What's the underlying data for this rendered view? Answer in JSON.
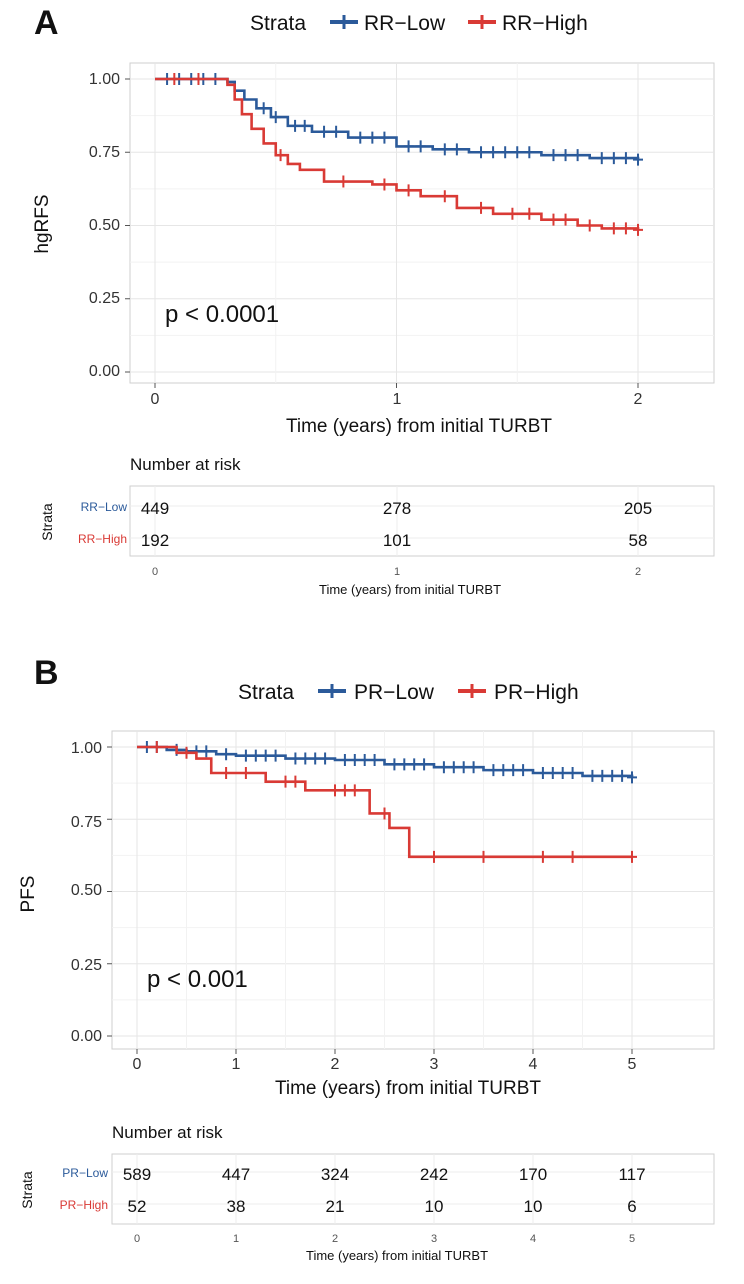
{
  "colors": {
    "low": "#2b5a9a",
    "high": "#d93a35",
    "grid": "#e6e6e6",
    "panel_border": "#cfcfcf"
  },
  "chart_data": [
    {
      "type": "line",
      "panel_label": "A",
      "legend": {
        "title": "Strata",
        "entries": [
          "RR−Low",
          "RR−High"
        ]
      },
      "xlabel": "Time (years) from initial TURBT",
      "ylabel": "hgRFS",
      "xlim": [
        0,
        2
      ],
      "ylim": [
        0,
        1
      ],
      "x_ticks": [
        "0",
        "1",
        "2"
      ],
      "y_ticks": [
        "0.00",
        "0.25",
        "0.50",
        "0.75",
        "1.00"
      ],
      "annotation": "p < 0.0001",
      "grid": true,
      "legend_position": "top",
      "series": [
        {
          "name": "RR−Low",
          "step_x": [
            0,
            0.3,
            0.33,
            0.37,
            0.42,
            0.48,
            0.55,
            0.65,
            0.8,
            1.0,
            1.15,
            1.3,
            1.6,
            1.8,
            2.0
          ],
          "step_y": [
            1.0,
            0.99,
            0.96,
            0.93,
            0.9,
            0.87,
            0.84,
            0.82,
            0.8,
            0.77,
            0.76,
            0.75,
            0.74,
            0.73,
            0.725
          ],
          "censor_x": [
            0.05,
            0.1,
            0.15,
            0.2,
            0.25,
            0.45,
            0.5,
            0.58,
            0.62,
            0.7,
            0.75,
            0.85,
            0.9,
            0.95,
            1.05,
            1.1,
            1.2,
            1.25,
            1.35,
            1.4,
            1.45,
            1.5,
            1.55,
            1.65,
            1.7,
            1.75,
            1.85,
            1.9,
            1.95,
            2.0
          ]
        },
        {
          "name": "RR−High",
          "step_x": [
            0,
            0.3,
            0.33,
            0.36,
            0.4,
            0.45,
            0.5,
            0.55,
            0.6,
            0.7,
            0.9,
            1.0,
            1.1,
            1.25,
            1.4,
            1.6,
            1.75,
            1.85,
            2.0
          ],
          "step_y": [
            1.0,
            0.98,
            0.93,
            0.88,
            0.83,
            0.78,
            0.74,
            0.71,
            0.69,
            0.65,
            0.64,
            0.62,
            0.6,
            0.56,
            0.54,
            0.52,
            0.5,
            0.49,
            0.485
          ],
          "censor_x": [
            0.08,
            0.18,
            0.52,
            0.78,
            0.95,
            1.05,
            1.2,
            1.35,
            1.48,
            1.55,
            1.65,
            1.7,
            1.8,
            1.9,
            1.95,
            2.0
          ]
        }
      ],
      "risk_table": {
        "title": "Number at risk",
        "strata_title": "Strata",
        "xlabel": "Time (years) from initial TURBT",
        "times": [
          "0",
          "1",
          "2"
        ],
        "rows": [
          {
            "label": "RR−Low",
            "values": [
              "449",
              "278",
              "205"
            ]
          },
          {
            "label": "RR−High",
            "values": [
              "192",
              "101",
              "58"
            ]
          }
        ]
      }
    },
    {
      "type": "line",
      "panel_label": "B",
      "legend": {
        "title": "Strata",
        "entries": [
          "PR−Low",
          "PR−High"
        ]
      },
      "xlabel": "Time (years) from initial TURBT",
      "ylabel": "PFS",
      "xlim": [
        0,
        5
      ],
      "ylim": [
        0,
        1
      ],
      "x_ticks": [
        "0",
        "1",
        "2",
        "3",
        "4",
        "5"
      ],
      "y_ticks": [
        "0.00",
        "0.25",
        "0.50",
        "0.75",
        "1.00"
      ],
      "annotation": "p < 0.001",
      "grid": true,
      "legend_position": "top",
      "series": [
        {
          "name": "PR−Low",
          "step_x": [
            0,
            0.3,
            0.5,
            0.8,
            1.0,
            1.5,
            2.0,
            2.5,
            3.0,
            3.5,
            4.0,
            4.5,
            5.0
          ],
          "step_y": [
            1.0,
            0.99,
            0.985,
            0.975,
            0.97,
            0.96,
            0.955,
            0.94,
            0.93,
            0.92,
            0.91,
            0.9,
            0.895
          ],
          "censor_x": [
            0.1,
            0.2,
            0.4,
            0.6,
            0.7,
            0.9,
            1.1,
            1.2,
            1.3,
            1.4,
            1.6,
            1.7,
            1.8,
            1.9,
            2.1,
            2.2,
            2.3,
            2.4,
            2.6,
            2.7,
            2.8,
            2.9,
            3.1,
            3.2,
            3.3,
            3.4,
            3.6,
            3.7,
            3.8,
            3.9,
            4.1,
            4.2,
            4.3,
            4.4,
            4.6,
            4.7,
            4.8,
            4.9,
            5.0
          ]
        },
        {
          "name": "PR−High",
          "step_x": [
            0,
            0.4,
            0.6,
            0.75,
            1.3,
            1.7,
            2.35,
            2.55,
            2.75,
            5.0
          ],
          "step_y": [
            1.0,
            0.98,
            0.96,
            0.91,
            0.88,
            0.85,
            0.77,
            0.72,
            0.62,
            0.62
          ],
          "censor_x": [
            0.2,
            0.5,
            0.9,
            1.1,
            1.5,
            1.6,
            2.0,
            2.1,
            2.2,
            2.5,
            3.0,
            3.5,
            4.1,
            4.4,
            5.0
          ]
        }
      ],
      "risk_table": {
        "title": "Number at risk",
        "strata_title": "Strata",
        "xlabel": "Time (years) from initial TURBT",
        "times": [
          "0",
          "1",
          "2",
          "3",
          "4",
          "5"
        ],
        "rows": [
          {
            "label": "PR−Low",
            "values": [
              "589",
              "447",
              "324",
              "242",
              "170",
              "117"
            ]
          },
          {
            "label": "PR−High",
            "values": [
              "52",
              "38",
              "21",
              "10",
              "10",
              "6"
            ]
          }
        ]
      }
    }
  ]
}
